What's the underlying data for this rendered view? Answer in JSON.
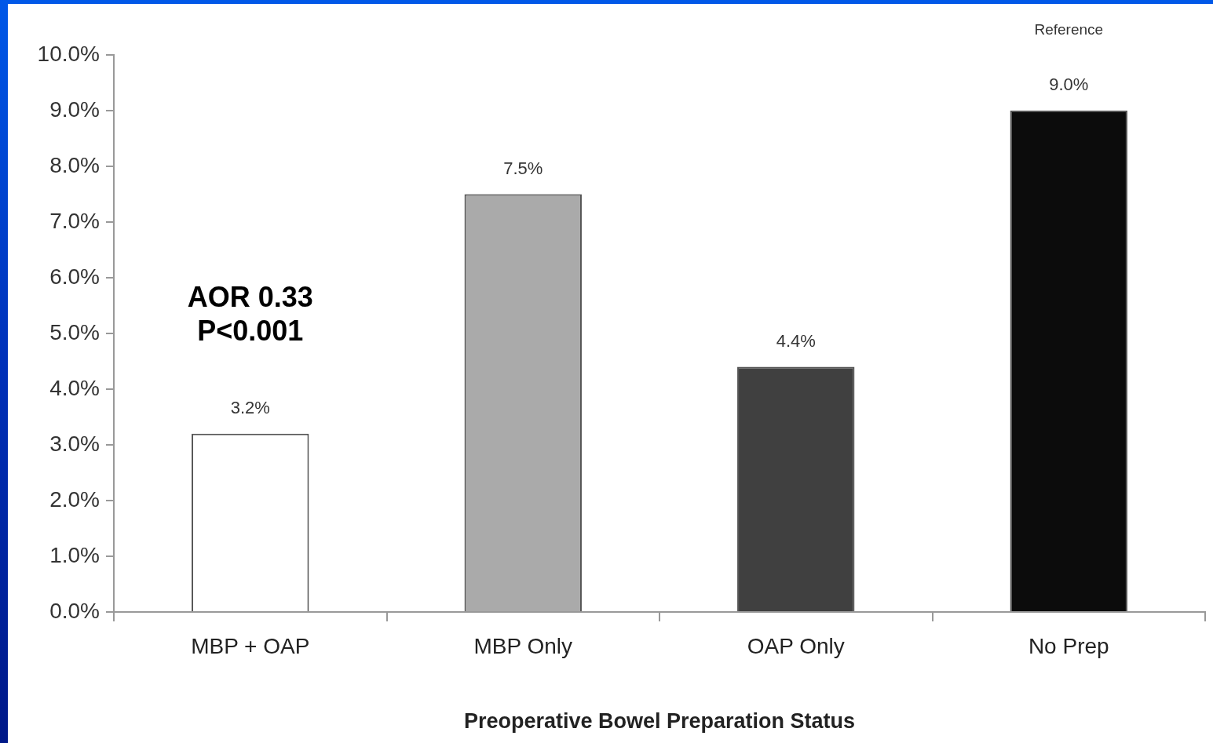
{
  "chart_data": {
    "type": "bar",
    "xlabel": "Preoperative Bowel Preparation Status",
    "categories": [
      "MBP + OAP",
      "MBP Only",
      "OAP Only",
      "No Prep"
    ],
    "values": [
      3.2,
      7.5,
      4.4,
      9.0
    ],
    "colors": [
      "#ffffff",
      "#aaaaaa",
      "#404040",
      "#0c0c0c"
    ],
    "value_labels": [
      "3.2%",
      "7.5%",
      "4.4%",
      "9.0%"
    ],
    "ylim": [
      0,
      10
    ],
    "yticks": [
      {
        "value": 0,
        "label": "0.0%"
      },
      {
        "value": 1,
        "label": "1.0%"
      },
      {
        "value": 2,
        "label": "2.0%"
      },
      {
        "value": 3,
        "label": "3.0%"
      },
      {
        "value": 4,
        "label": "4.0%"
      },
      {
        "value": 5,
        "label": "5.0%"
      },
      {
        "value": 6,
        "label": "6.0%"
      },
      {
        "value": 7,
        "label": "7.0%"
      },
      {
        "value": 8,
        "label": "8.0%"
      },
      {
        "value": 9,
        "label": "9.0%"
      },
      {
        "value": 10,
        "label": "10.0%"
      }
    ],
    "annotations": [
      "AOR 0.33\nP<0.001",
      "Reference"
    ]
  }
}
